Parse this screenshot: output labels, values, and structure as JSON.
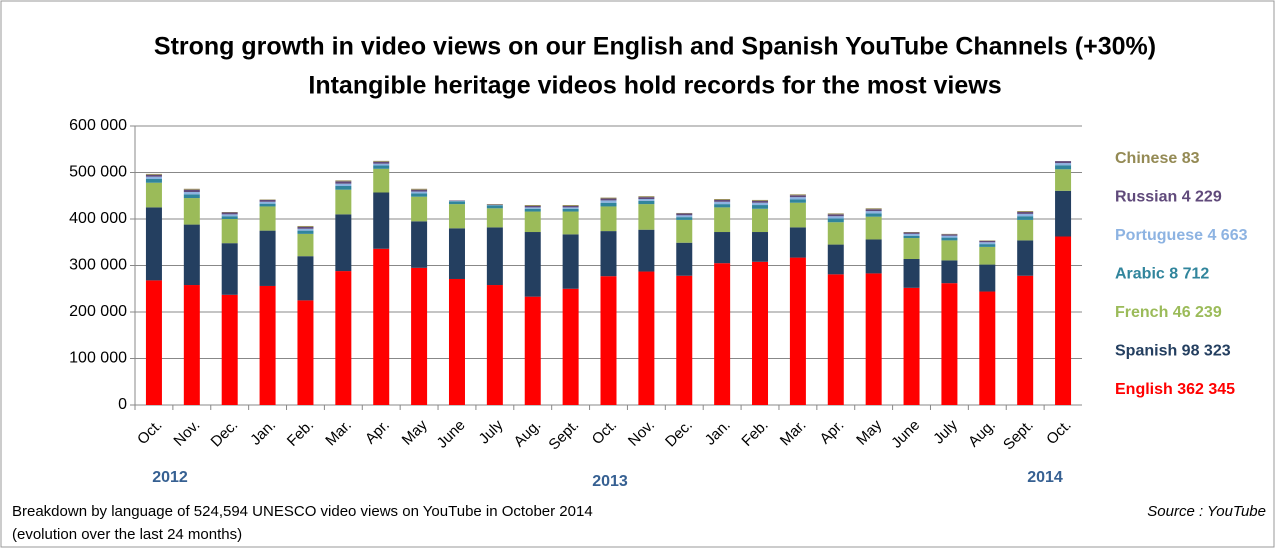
{
  "chart_data": {
    "type": "stacked_bar",
    "title": [
      "Strong growth in video views on our English and Spanish YouTube Channels (+30%)",
      "Intangible heritage videos hold records for the most views"
    ],
    "categories": [
      "Oct.",
      "Nov.",
      "Dec.",
      "Jan.",
      "Feb.",
      "Mar.",
      "Apr.",
      "May",
      "June",
      "July",
      "Aug.",
      "Sept.",
      "Oct.",
      "Nov.",
      "Dec.",
      "Jan.",
      "Feb.",
      "Mar.",
      "Apr.",
      "May",
      "June",
      "July",
      "Aug.",
      "Sept.",
      "Oct."
    ],
    "year_labels": [
      "2012",
      "2013",
      "2014"
    ],
    "series": [
      {
        "name": "English  362 345",
        "color": "#ff0000",
        "values": [
          268000,
          258000,
          237000,
          256000,
          225000,
          288000,
          336000,
          295000,
          271000,
          258000,
          233000,
          250000,
          277000,
          287000,
          278000,
          305000,
          308000,
          317000,
          281000,
          283000,
          252000,
          262000,
          244000,
          278000,
          362345
        ]
      },
      {
        "name": "Spanish 98 323",
        "color": "#243f60",
        "values": [
          157000,
          130000,
          111000,
          119000,
          95000,
          122000,
          121000,
          100000,
          109000,
          124000,
          139000,
          117000,
          97000,
          90000,
          71000,
          67000,
          64000,
          65000,
          64000,
          73000,
          62000,
          49000,
          58000,
          76000,
          98323
        ]
      },
      {
        "name": "French 46 239",
        "color": "#9bbb59",
        "values": [
          53000,
          57000,
          52000,
          52000,
          48000,
          53000,
          51000,
          53000,
          52000,
          41000,
          44000,
          49000,
          53000,
          55000,
          49000,
          53000,
          50000,
          53000,
          48000,
          49000,
          45000,
          43000,
          38000,
          44000,
          46239
        ]
      },
      {
        "name": "Arabic 8 712",
        "color": "#31859c",
        "values": [
          8000,
          8000,
          6000,
          6000,
          7000,
          8000,
          7000,
          7000,
          6000,
          6000,
          6000,
          6000,
          8000,
          7000,
          6000,
          7000,
          8000,
          7000,
          8000,
          7000,
          5000,
          6000,
          6000,
          8000,
          8712
        ]
      },
      {
        "name": "Portuguese 4 663",
        "color": "#8db3e2",
        "values": [
          5000,
          5000,
          4000,
          4000,
          4000,
          5000,
          4000,
          4000,
          1000,
          1000,
          3000,
          3000,
          5000,
          4000,
          4000,
          5000,
          5000,
          5000,
          5000,
          5000,
          4000,
          4000,
          4000,
          5000,
          4663
        ]
      },
      {
        "name": "Russian 4 229",
        "color": "#604a7b",
        "values": [
          4000,
          5000,
          4000,
          4000,
          4000,
          5000,
          4000,
          4000,
          1000,
          1000,
          3000,
          3000,
          4000,
          4000,
          4000,
          4000,
          4000,
          4000,
          4000,
          4000,
          3000,
          3000,
          3000,
          4000,
          4229
        ]
      },
      {
        "name": "Chinese 83",
        "color": "#948a54",
        "values": [
          2000,
          2000,
          1000,
          1000,
          2000,
          2000,
          2000,
          2000,
          0,
          1000,
          2000,
          2000,
          2000,
          2000,
          1000,
          2000,
          2000,
          2000,
          2000,
          2000,
          1000,
          1000,
          1000,
          2000,
          83
        ]
      }
    ],
    "ylim": [
      0,
      600000
    ],
    "yticks": [
      0,
      {
        "value": 100000,
        "label": "100 000"
      },
      {
        "value": 200000,
        "label": "200 000"
      },
      {
        "value": 300000,
        "label": "300 000"
      },
      {
        "value": 400000,
        "label": "400 000"
      },
      {
        "value": 500000,
        "label": "500 000"
      },
      {
        "value": 600000,
        "label": "600 000"
      }
    ],
    "grid": true,
    "legend": "right",
    "footnote": [
      "Breakdown by language of 524,594 UNESCO video views on YouTube in October 2014",
      "(evolution over the last 24 months)"
    ],
    "source": "Source : YouTube"
  }
}
